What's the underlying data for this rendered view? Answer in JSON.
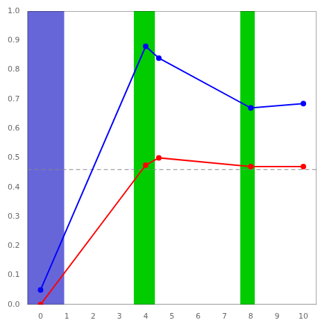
{
  "chart_data": {
    "type": "line",
    "x": [
      0,
      4,
      4.5,
      8,
      10
    ],
    "series": [
      {
        "color": "#0000ff",
        "values": [
          0.05,
          0.88,
          0.84,
          0.67,
          0.685
        ],
        "marker": "circle",
        "line_style": "solid"
      },
      {
        "color": "#ff0000",
        "values": [
          0.0,
          0.475,
          0.5,
          0.47,
          0.47
        ],
        "marker": "circle",
        "line_style": "solid"
      }
    ],
    "xlim": [
      -0.5,
      10.5
    ],
    "xticks": [
      0,
      1,
      2,
      3,
      4,
      5,
      6,
      7,
      8,
      9,
      10
    ],
    "ylim": [
      0.0,
      1.0
    ],
    "yticks": [
      {
        "value": 0.0,
        "label": "0.0"
      },
      0.1,
      0.2,
      0.3,
      0.4,
      0.5,
      0.6,
      0.7,
      0.8,
      0.9,
      {
        "value": 1.0,
        "label": "1.0"
      }
    ],
    "shaded_spans": [
      {
        "x": [
          -0.5,
          0.9
        ],
        "color": "#3333cc"
      },
      {
        "x": [
          3.55,
          4.35
        ],
        "color": "#00cc00"
      },
      {
        "x": [
          7.6,
          8.15
        ],
        "color": "#00cc00"
      }
    ],
    "reference_line": {
      "y": 0.46,
      "color": "#888888",
      "line_style": "dashed"
    },
    "grid": false
  }
}
